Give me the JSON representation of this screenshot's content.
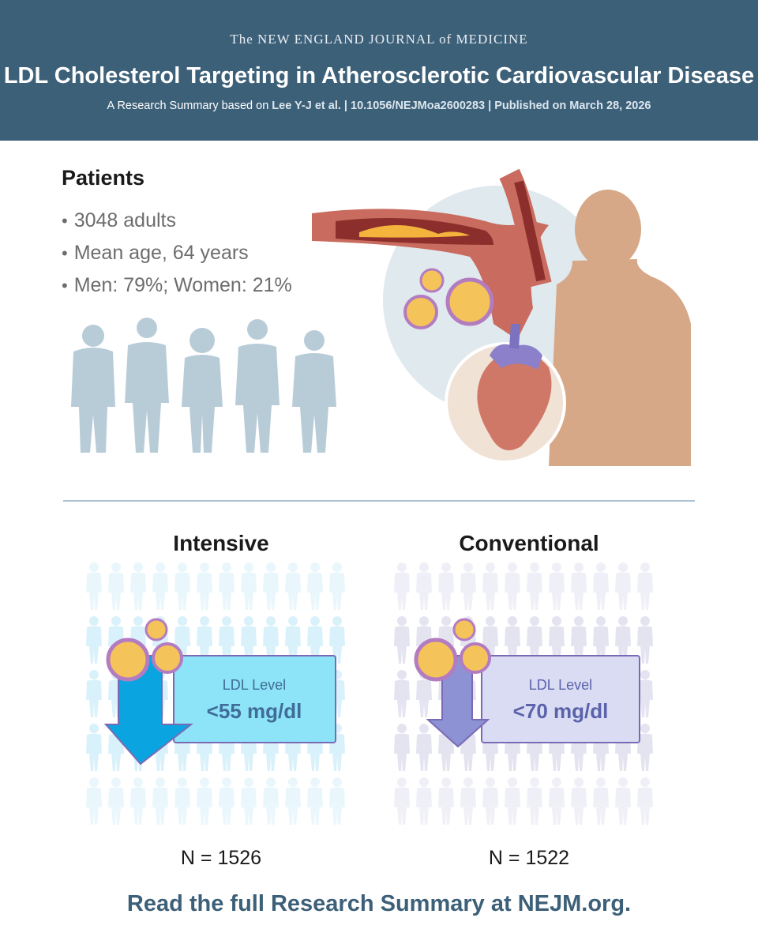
{
  "header": {
    "journal": "The NEW ENGLAND JOURNAL of MEDICINE",
    "title": "LDL Cholesterol Targeting in Atherosclerotic Cardiovascular Disease",
    "subtitle_prefix": "A Research Summary based on ",
    "subtitle_ref": "Lee Y-J et al. | 10.1056/NEJMoa2600283 | Published on March 28, 2026"
  },
  "patients": {
    "heading": "Patients",
    "bullets": [
      "3048 adults",
      "Mean age, 64 years",
      "Men: 79%; Women: 21%"
    ]
  },
  "groups": [
    {
      "title": "Intensive",
      "ldl_label": "LDL Level",
      "ldl_value": "<55 mg/dl",
      "n": "N = 1526",
      "color": "#0aa5e0"
    },
    {
      "title": "Conventional",
      "ldl_label": "LDL Level",
      "ldl_value": "<70 mg/dl",
      "n": "N = 1522",
      "color": "#8c92d4"
    }
  ],
  "footer": "Read the full Research Summary at NEJM.org.",
  "colors": {
    "header_bg": "#3d6079",
    "intensive": "#0aa5e0",
    "conventional": "#8c92d4"
  }
}
